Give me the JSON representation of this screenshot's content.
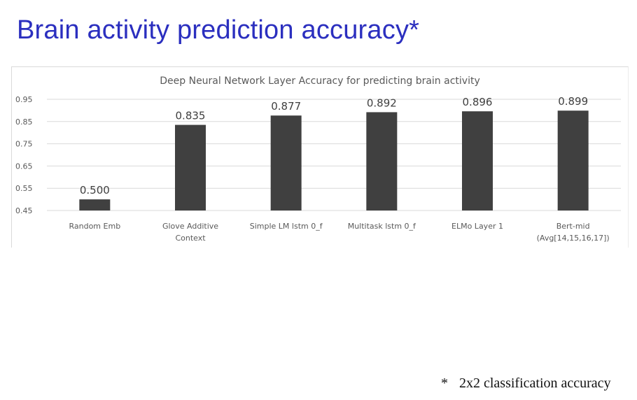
{
  "slide": {
    "title": "Brain activity prediction accuracy*",
    "footnote_marker": "*",
    "footnote_text": "2x2 classification accuracy"
  },
  "colors": {
    "title": "#2b2fbf",
    "bar": "#404040",
    "gridline": "#d9d9d9"
  },
  "chart_data": {
    "type": "bar",
    "title": "Deep Neural Network Layer Accuracy for predicting brain activity",
    "categories": [
      [
        "Random Emb"
      ],
      [
        "Glove Additive",
        "Context"
      ],
      [
        "Simple LM lstm 0_f"
      ],
      [
        "Multitask lstm 0_f"
      ],
      [
        "ELMo Layer 1"
      ],
      [
        "Bert-mid",
        "(Avg[14,15,16,17])"
      ]
    ],
    "values": [
      0.5,
      0.835,
      0.877,
      0.892,
      0.896,
      0.899
    ],
    "data_labels": [
      "0.500",
      "0.835",
      "0.877",
      "0.892",
      "0.896",
      "0.899"
    ],
    "yticks": [
      "0.45",
      "0.55",
      "0.65",
      "0.75",
      "0.85",
      "0.95"
    ],
    "ylim": [
      0.45,
      0.95
    ],
    "grid": true
  }
}
